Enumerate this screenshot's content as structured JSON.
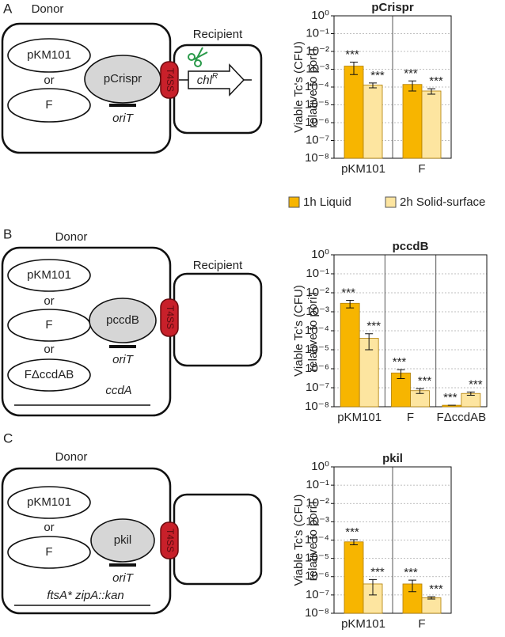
{
  "diagrams": [
    {
      "panel": "A",
      "donor": "Donor",
      "recipient": "Recipient",
      "plasmids": [
        "pKM101",
        "or",
        "F"
      ],
      "cargo": "pCrispr",
      "origin": "oriT",
      "channel": "T4SS",
      "gene": "chl",
      "gene_sup": "R"
    },
    {
      "panel": "B",
      "donor": "Donor",
      "recipient": "Recipient",
      "plasmids": [
        "pKM101",
        "or",
        "F",
        "or",
        "FΔccdAB"
      ],
      "cargo": "pccdB",
      "origin": "oriT",
      "channel": "T4SS",
      "chromosome": "ccdA"
    },
    {
      "panel": "C",
      "donor": "Donor",
      "plasmids": [
        "pKM101",
        "or",
        "F"
      ],
      "cargo": "pkil",
      "origin": "oriT",
      "channel": "T4SS",
      "chromosome": "ftsA* zipA::kan"
    }
  ],
  "chart_data": [
    {
      "type": "bar",
      "title": "pCrispr",
      "ylabel": [
        "Viable Tc's (CFU)",
        "relative to poriT"
      ],
      "log_scale": true,
      "grid": true,
      "categories": [
        "pKM101",
        "F"
      ],
      "series": [
        {
          "name": "1h Liquid",
          "color": "#f7b500",
          "values": [
            0.0015,
            0.00014
          ],
          "errors": [
            0.001,
            8e-05
          ],
          "annotations": [
            "***",
            "***"
          ]
        },
        {
          "name": "2h Solid-surface",
          "color": "#fde5a0",
          "values": [
            0.00013,
            6e-05
          ],
          "errors": [
            4e-05,
            2e-05
          ],
          "annotations": [
            "***",
            "***"
          ]
        }
      ],
      "ylim": [
        1e-08,
        1
      ],
      "yticks": [
        {
          "value": 1,
          "label": "10⁰"
        },
        {
          "value": 0.1,
          "label": "10⁻¹"
        },
        {
          "value": 0.01,
          "label": "10⁻²"
        },
        {
          "value": 0.001,
          "label": "10⁻³"
        },
        {
          "value": 0.0001,
          "label": "10⁻⁴"
        },
        {
          "value": 1e-05,
          "label": "10⁻⁵"
        },
        {
          "value": 1e-06,
          "label": "10⁻⁶"
        },
        {
          "value": 1e-07,
          "label": "10⁻⁷"
        },
        {
          "value": 1e-08,
          "label": "10⁻⁸"
        }
      ]
    },
    {
      "type": "bar",
      "title": "pccdB",
      "ylabel": [
        "Viable Tc's (CFU)",
        "relative to poriT"
      ],
      "log_scale": true,
      "grid": true,
      "categories": [
        "pKM101",
        "F",
        "FΔccdAB"
      ],
      "series": [
        {
          "color": "#f7b500",
          "values": [
            0.0028,
            6e-07,
            1.2e-08
          ],
          "errors": [
            0.0012,
            3e-07,
            0
          ],
          "annotations": [
            "***",
            "***",
            "***"
          ]
        },
        {
          "color": "#fde5a0",
          "values": [
            4e-05,
            7e-08,
            5e-08
          ],
          "errors": [
            3e-05,
            2e-08,
            1e-08
          ],
          "annotations": [
            "***",
            "***",
            "***"
          ]
        }
      ],
      "ylim": [
        1e-08,
        1
      ],
      "yticks": [
        {
          "value": 1,
          "label": "10⁰"
        },
        {
          "value": 0.1,
          "label": "10⁻¹"
        },
        {
          "value": 0.01,
          "label": "10⁻²"
        },
        {
          "value": 0.001,
          "label": "10⁻³"
        },
        {
          "value": 0.0001,
          "label": "10⁻⁴"
        },
        {
          "value": 1e-05,
          "label": "10⁻⁵"
        },
        {
          "value": 1e-06,
          "label": "10⁻⁶"
        },
        {
          "value": 1e-07,
          "label": "10⁻⁷"
        },
        {
          "value": 1e-08,
          "label": "10⁻⁸"
        }
      ]
    },
    {
      "type": "bar",
      "title": "pkil",
      "ylabel": [
        "Viable Tc's (CFU)",
        "relative to poriT"
      ],
      "log_scale": true,
      "grid": true,
      "categories": [
        "pKM101",
        "F"
      ],
      "series": [
        {
          "color": "#f7b500",
          "values": [
            8e-05,
            4e-07
          ],
          "errors": [
            2.5e-05,
            2.5e-07
          ],
          "annotations": [
            "***",
            "***"
          ]
        },
        {
          "color": "#fde5a0",
          "values": [
            4e-07,
            7e-08
          ],
          "errors": [
            3e-07,
            1e-08
          ],
          "annotations": [
            "***",
            "***"
          ]
        }
      ],
      "ylim": [
        1e-08,
        1
      ],
      "yticks": [
        {
          "value": 1,
          "label": "10⁰"
        },
        {
          "value": 0.1,
          "label": "10⁻¹"
        },
        {
          "value": 0.01,
          "label": "10⁻²"
        },
        {
          "value": 0.001,
          "label": "10⁻³"
        },
        {
          "value": 0.0001,
          "label": "10⁻⁴"
        },
        {
          "value": 1e-05,
          "label": "10⁻⁵"
        },
        {
          "value": 1e-06,
          "label": "10⁻⁶"
        },
        {
          "value": 1e-07,
          "label": "10⁻⁷"
        },
        {
          "value": 1e-08,
          "label": "10⁻⁸"
        }
      ]
    }
  ]
}
